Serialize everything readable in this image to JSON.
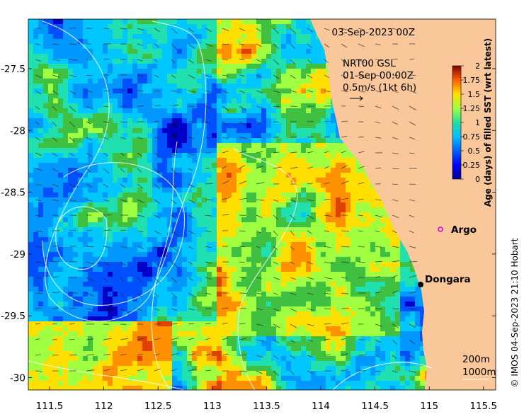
{
  "map": {
    "date_title": "03-Sep-2023 00Z",
    "current_title": "NRT00 GSL",
    "current_time": "01-Sep 00:00Z",
    "vector_scale": "0.5m/s (1kt 6h)",
    "lon_ticks": [
      "111.5",
      "112",
      "112.5",
      "113",
      "113.5",
      "114",
      "114.5",
      "115",
      "115.5"
    ],
    "lat_ticks": [
      "-27.5",
      "-28",
      "-28.5",
      "-29",
      "-29.5",
      "-30"
    ],
    "places": [
      {
        "name": "Argo",
        "lon": 115.1,
        "lat": -28.84,
        "marker": "magenta-circle"
      },
      {
        "name": "Dongara",
        "lon": 114.93,
        "lat": -29.25,
        "marker": "black-dot"
      }
    ],
    "contours": {
      "shallow": "200m",
      "deep": "1000m"
    },
    "credit": "© IMOS 04-Sep-2023 21:10 Hobart",
    "land_color": "#f9c79a"
  },
  "colorbar": {
    "label": "Age (days) of filled SST (wrt latest)",
    "ticks": [
      "2",
      "1.75",
      "1.5",
      "1.25",
      "1",
      "0.75",
      "0.5",
      "0.25",
      "0"
    ],
    "colormap": "jet",
    "range": [
      0,
      2
    ]
  }
}
